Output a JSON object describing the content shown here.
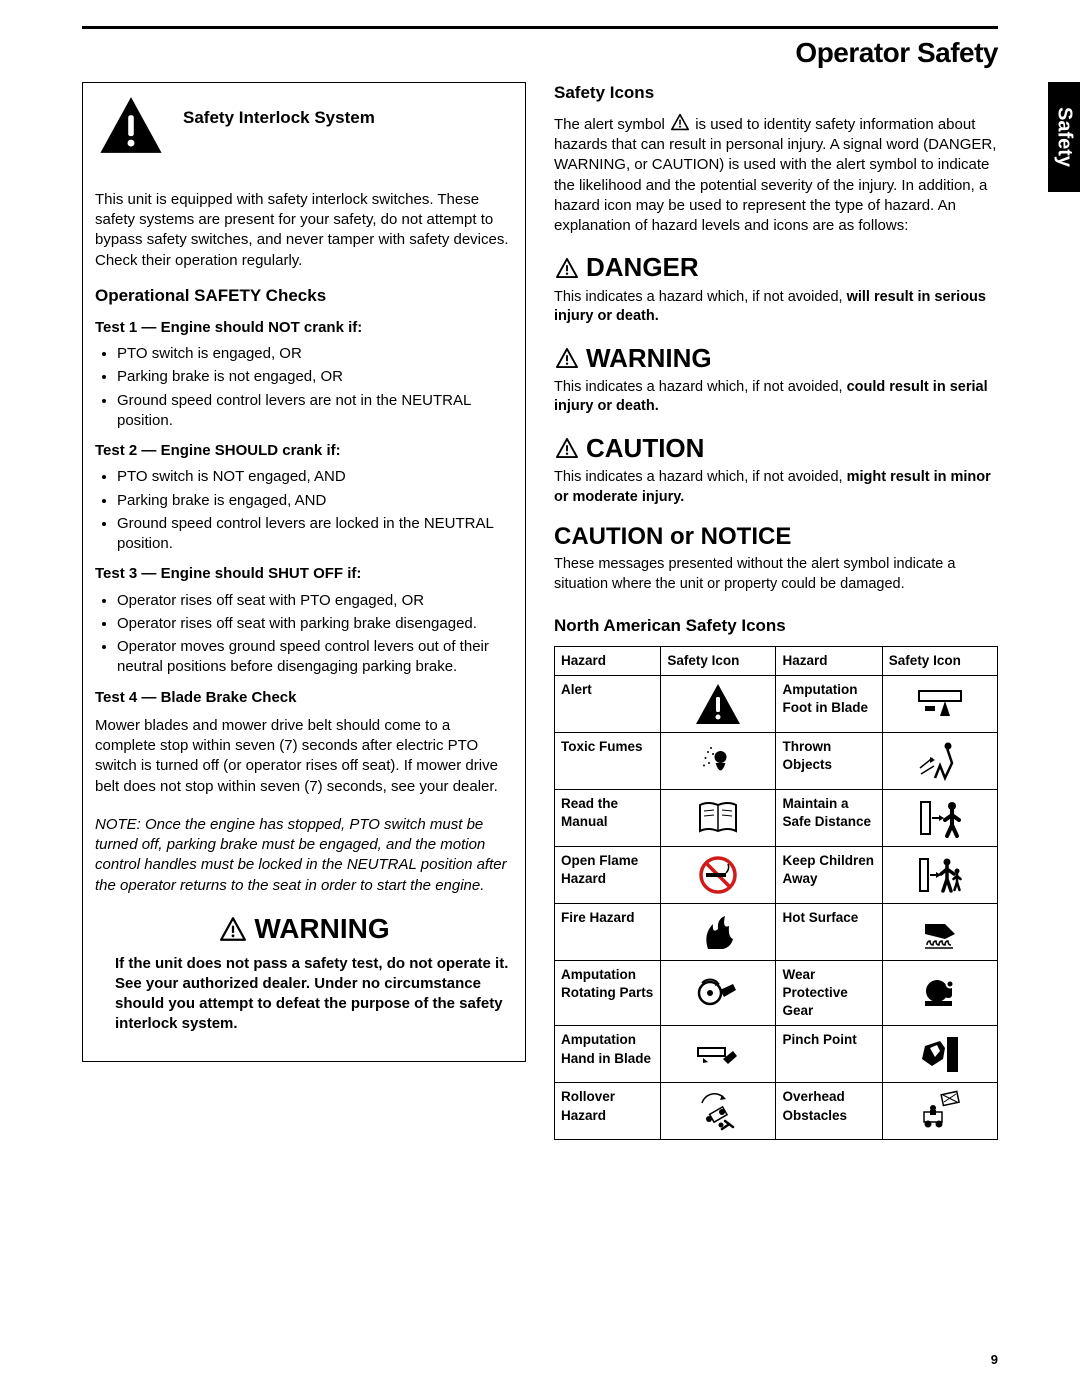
{
  "page": {
    "title": "Operator Safety",
    "side_tab": "Safety",
    "number": "9"
  },
  "left": {
    "sis_heading": "Safety Interlock System",
    "sis_para": "This unit is equipped with safety interlock switches.  These safety systems are present for your safety, do not attempt to bypass safety switches, and never tamper with safety devices.  Check their operation regularly.",
    "checks_heading": "Operational SAFETY Checks",
    "test1_heading": "Test 1 — Engine should NOT crank if:",
    "test1_items": [
      "PTO switch is engaged, OR",
      "Parking brake is not engaged, OR",
      "Ground speed control levers are not in the NEUTRAL position."
    ],
    "test2_heading": "Test 2 — Engine SHOULD crank if:",
    "test2_items": [
      "PTO switch is NOT engaged, AND",
      "Parking brake is engaged, AND",
      "Ground speed control levers are locked in the NEUTRAL position."
    ],
    "test3_heading": "Test 3 — Engine should SHUT OFF if:",
    "test3_items": [
      "Operator rises off seat with PTO engaged, OR",
      "Operator rises off seat with parking brake disengaged.",
      "Operator moves ground speed control levers out of their neutral positions before disengaging parking brake."
    ],
    "test4_heading": "Test 4 — Blade Brake Check",
    "test4_para": "Mower blades and mower drive belt should come to a complete stop within seven (7) seconds after electric PTO switch is turned off (or operator rises off seat).  If mower drive belt does not stop within seven (7) seconds, see your dealer.",
    "note": "NOTE: Once the engine has stopped, PTO switch must be turned off, parking brake must be engaged, and the motion control handles must be locked in the NEUTRAL position after the operator returns to the seat in order to start the engine.",
    "warning_word": "WARNING",
    "warning_para": "If the unit does not pass a safety test, do not operate it.  See your authorized dealer.  Under no circumstance should you attempt to defeat the purpose of the safety interlock system."
  },
  "right": {
    "icons_heading": "Safety Icons",
    "icons_para_a": "The alert symbol ",
    "icons_para_b": " is used to identity safety information about hazards that can result in personal injury.  A signal word (DANGER, WARNING, or CAUTION) is used with the alert symbol to indicate the likelihood and the potential severity of the injury.  In addition, a hazard icon may be used to represent the type of hazard.  An explanation of hazard levels and icons are as follows:",
    "danger_word": "DANGER",
    "danger_text_a": "This indicates a hazard which, if not avoided, ",
    "danger_text_b": "will result in serious injury or death.",
    "warning_word": "WARNING",
    "warning_text_a": "This indicates a hazard which, if not avoided, ",
    "warning_text_b": "could result in serial injury or death.",
    "caution_word": "CAUTION",
    "caution_text_a": "This indicates a hazard which, if not avoided, ",
    "caution_text_b": "might result in minor or moderate injury.",
    "notice_word": "CAUTION or NOTICE",
    "notice_text": "These messages presented without the alert symbol indicate a situation where the unit or property could be damaged.",
    "table_heading": "North American Safety Icons",
    "table_headers": [
      "Hazard",
      "Safety Icon",
      "Hazard",
      "Safety Icon"
    ],
    "table_rows": [
      {
        "l": "Alert",
        "li": "alert",
        "r": "Amputation Foot in Blade",
        "ri": "foot"
      },
      {
        "l": "Toxic Fumes",
        "li": "fumes",
        "r": "Thrown Objects",
        "ri": "thrown"
      },
      {
        "l": "Read the Manual",
        "li": "manual",
        "r": "Maintain a Safe Distance",
        "ri": "distance"
      },
      {
        "l": "Open Flame Hazard",
        "li": "nosmoke",
        "r": "Keep Children Away",
        "ri": "children"
      },
      {
        "l": "Fire Hazard",
        "li": "fire",
        "r": "Hot Surface",
        "ri": "hot"
      },
      {
        "l": "Amputation Rotating Parts",
        "li": "rotating",
        "r": "Wear Protective Gear",
        "ri": "gear"
      },
      {
        "l": "Amputation Hand in Blade",
        "li": "hand",
        "r": "Pinch Point",
        "ri": "pinch"
      },
      {
        "l": "Rollover Hazard",
        "li": "rollover",
        "r": "Overhead Obstacles",
        "ri": "overhead"
      }
    ]
  },
  "colors": {
    "text": "#000000",
    "bg": "#ffffff",
    "red": "#d11a1a"
  }
}
